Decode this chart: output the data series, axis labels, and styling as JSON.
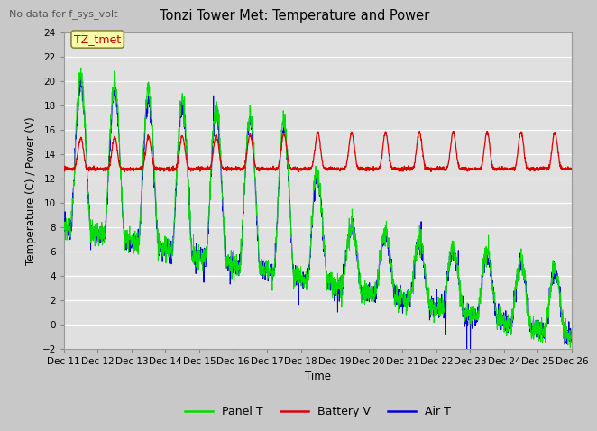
{
  "title": "Tonzi Tower Met: Temperature and Power",
  "subtitle": "No data for f_sys_volt",
  "ylabel": "Temperature (C) / Power (V)",
  "xlabel": "Time",
  "annotation": "TZ_tmet",
  "ylim": [
    -2,
    24
  ],
  "yticks": [
    -2,
    0,
    2,
    4,
    6,
    8,
    10,
    12,
    14,
    16,
    18,
    20,
    22,
    24
  ],
  "xtick_labels": [
    "Dec 11",
    "Dec 12",
    "Dec 13",
    "Dec 14",
    "Dec 15",
    "Dec 16",
    "Dec 17",
    "Dec 18",
    "Dec 19",
    "Dec 20",
    "Dec 21",
    "Dec 22",
    "Dec 23",
    "Dec 24",
    "Dec 25",
    "Dec 26"
  ],
  "panel_color": "#00dd00",
  "battery_color": "#dd0000",
  "air_color": "#0000dd",
  "legend_labels": [
    "Panel T",
    "Battery V",
    "Air T"
  ]
}
